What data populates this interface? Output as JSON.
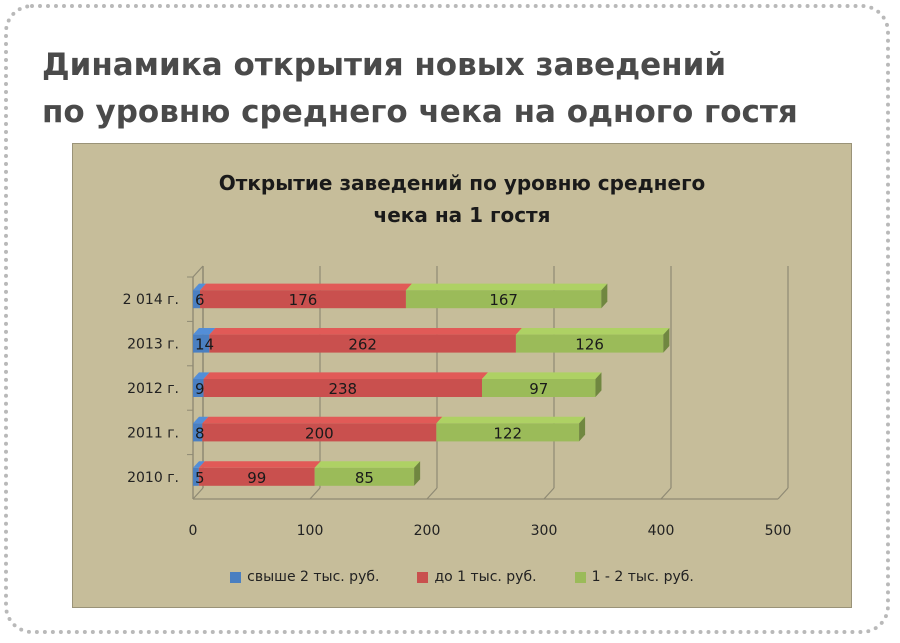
{
  "page": {
    "title_line1": "Динамика открытия новых заведений",
    "title_line2": "по уровню среднего чека на одного гостя"
  },
  "chart_data": {
    "type": "bar",
    "orientation": "horizontal",
    "stacked": true,
    "style": "3d",
    "title_line1": "Открытие заведений по уровню среднего",
    "title_line2": "чека на 1 гостя",
    "categories": [
      "2010 г.",
      "2011 г.",
      "2012 г.",
      "2013 г.",
      "2 014 г."
    ],
    "series": [
      {
        "name": "свыше 2 тыс. руб.",
        "color": "#4a7fc1",
        "values": [
          5,
          8,
          9,
          14,
          6
        ]
      },
      {
        "name": "до 1 тыс. руб.",
        "color": "#c9504e",
        "values": [
          99,
          200,
          238,
          262,
          176
        ]
      },
      {
        "name": "1 - 2 тыс. руб.",
        "color": "#9bbb59",
        "values": [
          85,
          122,
          97,
          126,
          167
        ]
      }
    ],
    "x_ticks": [
      "0",
      "100",
      "200",
      "300",
      "400",
      "500"
    ],
    "xlim": [
      0,
      500
    ],
    "grid": true,
    "legend_position": "bottom"
  }
}
